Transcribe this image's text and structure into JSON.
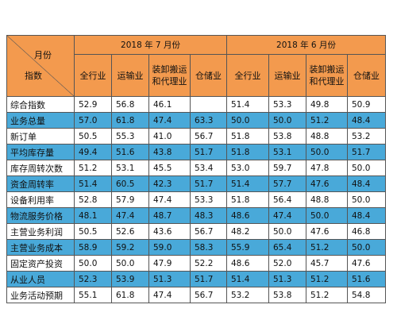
{
  "header": {
    "corner_top": "月份",
    "corner_bottom": "指数",
    "period1": "2018 年 7 月份",
    "period2": "2018 年 6 月份",
    "sub": [
      "全行业",
      "运输业",
      "装卸搬运和代理业",
      "仓储业"
    ]
  },
  "rows": [
    {
      "label": "综合指数",
      "values": [
        "52.9",
        "56.8",
        "46.1",
        "",
        "51.4",
        "53.3",
        "49.8",
        "50.9"
      ]
    },
    {
      "label": "业务总量",
      "values": [
        "57.0",
        "61.8",
        "47.4",
        "63.3",
        "50.0",
        "50.0",
        "51.2",
        "48.4"
      ]
    },
    {
      "label": "新订单",
      "values": [
        "50.5",
        "55.3",
        "41.0",
        "56.7",
        "51.8",
        "53.8",
        "48.8",
        "53.2"
      ]
    },
    {
      "label": "平均库存量",
      "values": [
        "49.4",
        "51.6",
        "43.8",
        "51.7",
        "51.8",
        "53.1",
        "50.0",
        "51.7"
      ]
    },
    {
      "label": "库存周转次数",
      "values": [
        "51.2",
        "53.1",
        "45.5",
        "53.4",
        "53.0",
        "59.7",
        "47.8",
        "50.0"
      ]
    },
    {
      "label": "资金周转率",
      "values": [
        "51.4",
        "60.5",
        "42.3",
        "51.7",
        "51.4",
        "57.7",
        "47.6",
        "48.4"
      ]
    },
    {
      "label": "设备利用率",
      "values": [
        "52.8",
        "57.9",
        "47.4",
        "53.3",
        "51.8",
        "56.4",
        "48.8",
        "50.0"
      ]
    },
    {
      "label": "物流服务价格",
      "values": [
        "48.1",
        "47.4",
        "48.7",
        "48.3",
        "48.6",
        "47.4",
        "50.0",
        "48.4"
      ]
    },
    {
      "label": "主营业务利润",
      "values": [
        "50.5",
        "52.6",
        "43.6",
        "56.7",
        "48.2",
        "50.0",
        "47.6",
        "46.8"
      ]
    },
    {
      "label": "主营业务成本",
      "values": [
        "58.9",
        "59.2",
        "59.0",
        "58.3",
        "55.9",
        "65.4",
        "51.2",
        "50.0"
      ]
    },
    {
      "label": "固定资产投资",
      "values": [
        "50.0",
        "50.0",
        "47.9",
        "52.2",
        "48.6",
        "52.0",
        "45.7",
        "47.6"
      ]
    },
    {
      "label": "从业人员",
      "values": [
        "52.3",
        "53.9",
        "51.3",
        "51.7",
        "51.4",
        "51.3",
        "51.2",
        "51.6"
      ]
    },
    {
      "label": "业务活动预期",
      "values": [
        "55.1",
        "61.8",
        "47.4",
        "56.7",
        "53.2",
        "53.8",
        "51.2",
        "54.8"
      ]
    }
  ],
  "colors": {
    "header_bg": "#f39a4e",
    "band_blue": "#49a9d9",
    "band_white": "#ffffff",
    "border": "#555555"
  }
}
